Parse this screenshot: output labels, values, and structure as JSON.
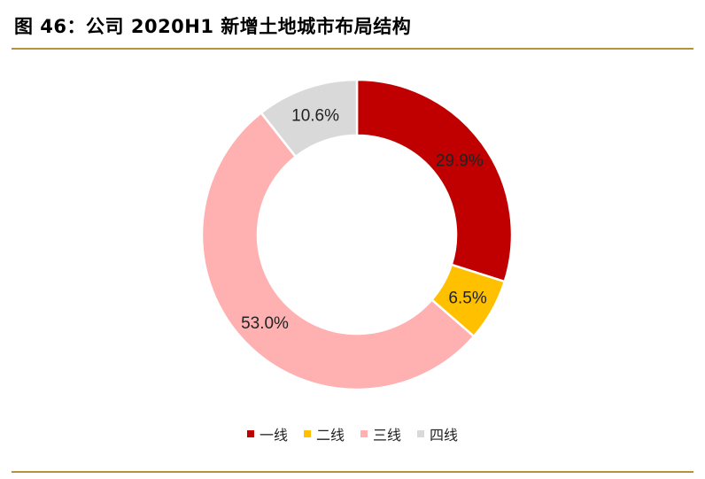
{
  "title": "图 46：公司 2020H1 新增土地城市布局结构",
  "chart_data": {
    "type": "pie",
    "donut": true,
    "categories": [
      "一线",
      "二线",
      "三线",
      "四线"
    ],
    "values": [
      29.9,
      6.5,
      53.0,
      10.6
    ],
    "labels": [
      "29.9%",
      "6.5%",
      "53.0%",
      "10.6%"
    ],
    "colors": [
      "#c00000",
      "#ffc000",
      "#ffb0b0",
      "#d9d9d9"
    ],
    "legend_position": "bottom"
  }
}
